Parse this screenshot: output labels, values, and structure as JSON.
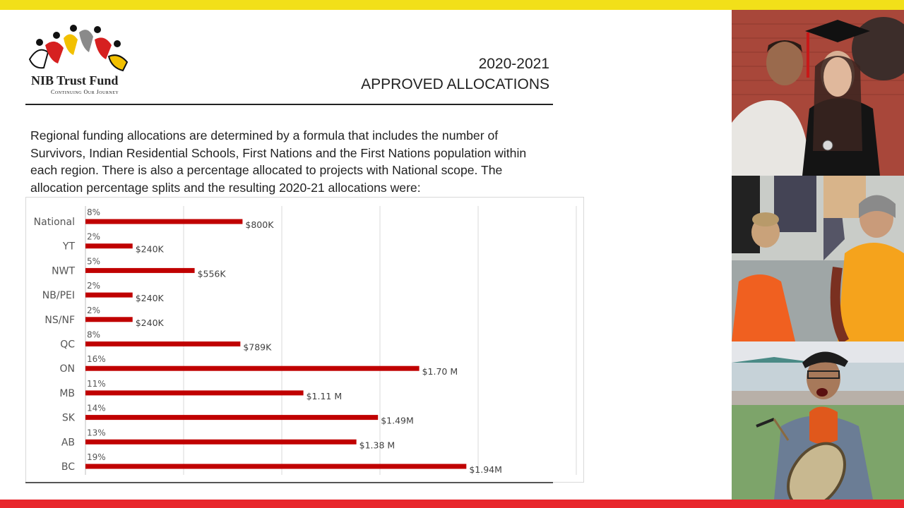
{
  "header": {
    "logo_name": "NIB Trust Fund",
    "logo_tagline": "Continuing Our Journey",
    "title_line1": "2020-2021",
    "title_line2": "APPROVED ALLOCATIONS"
  },
  "description": "Regional funding allocations are determined by a formula that includes the number of Survivors, Indian Residential Schools, First Nations and the First Nations population within each region. There is also a percentage allocated to projects with National scope. The allocation percentage splits and the resulting 2020-21 allocations were:",
  "colors": {
    "top_bar": "#f2e019",
    "bottom_bar": "#e8262c",
    "bar": "#c00000"
  },
  "chart_data": {
    "type": "bar",
    "orientation": "horizontal",
    "categories": [
      "National",
      "YT",
      "NWT",
      "NB/PEI",
      "NS/NF",
      "QC",
      "ON",
      "MB",
      "SK",
      "AB",
      "BC"
    ],
    "values": [
      800,
      240,
      556,
      240,
      240,
      789,
      1700,
      1110,
      1490,
      1380,
      1940
    ],
    "value_units": "thousands of dollars",
    "value_labels": [
      "$800K",
      "$240K",
      "$556K",
      "$240K",
      "$240K",
      "$789K",
      "$1.70 M",
      "$1.11 M",
      "$1.49M",
      "$1.38 M",
      "$1.94M"
    ],
    "percent_labels": [
      "8%",
      "2%",
      "5%",
      "2%",
      "2%",
      "8%",
      "16%",
      "11%",
      "14%",
      "13%",
      "19%"
    ],
    "xlim": [
      0,
      2500
    ],
    "grid": true,
    "legend": "none",
    "title": "",
    "xlabel": "",
    "ylabel": ""
  },
  "photos": [
    {
      "name": "graduation-photo"
    },
    {
      "name": "circle-dance-photo"
    },
    {
      "name": "drummer-photo"
    }
  ]
}
